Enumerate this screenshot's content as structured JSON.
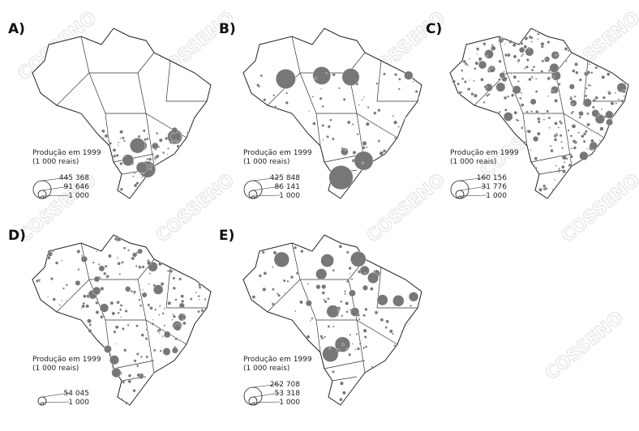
{
  "panels": [
    {
      "label": "A)",
      "legend_title": "Produção em 1999",
      "legend_unit": "(1 000 reais)",
      "legend_values": [
        "445 368",
        "91 646",
        "1 000"
      ]
    },
    {
      "label": "B)",
      "legend_title": "Produção em 1999",
      "legend_unit": "(1 000 reais)",
      "legend_values": [
        "425 848",
        "86 141",
        "1 000"
      ]
    },
    {
      "label": "C)",
      "legend_title": "Produção em 1999",
      "legend_unit": "(1 000 reais)",
      "legend_values": [
        "160 156",
        "31 776",
        "1 000"
      ]
    },
    {
      "label": "D)",
      "legend_title": "Produção em 1999",
      "legend_unit": "(1 000 reais)",
      "legend_values": [
        "54 045",
        "1 000"
      ]
    },
    {
      "label": "E)",
      "legend_title": "Produção em 1999",
      "legend_unit": "(1 000 reais)",
      "legend_values": [
        "262 708",
        "53 318",
        "1 000"
      ]
    }
  ],
  "watermark": "COSSENO"
}
